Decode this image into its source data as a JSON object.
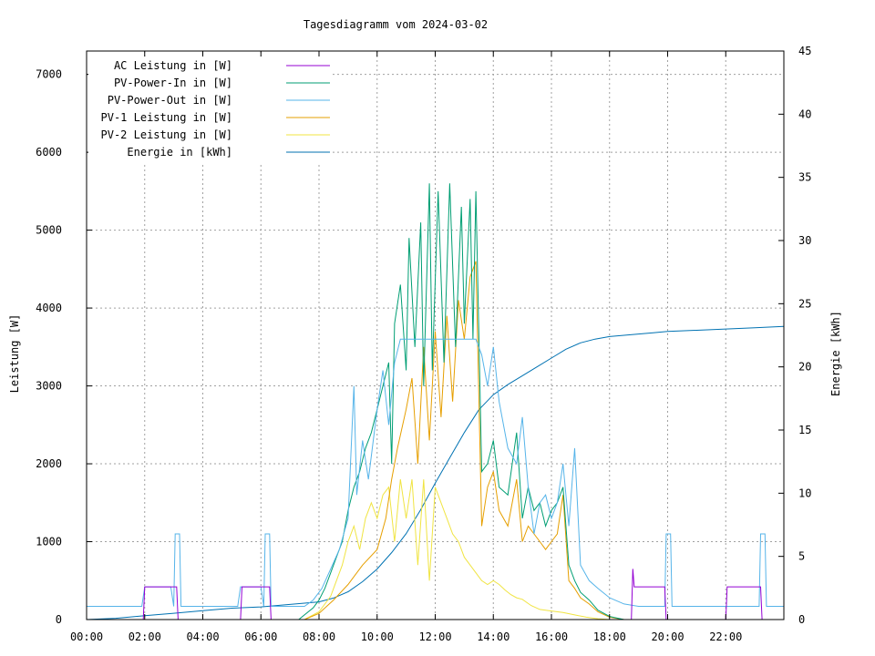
{
  "chart_data": {
    "type": "line",
    "title": "Tagesdiagramm vom 2024-03-02",
    "xlabel": "",
    "ylabel": "Leistung [W]",
    "y2label": "Energie [kWh]",
    "xlim": [
      0,
      24
    ],
    "ylim": [
      0,
      7300
    ],
    "y2lim": [
      0,
      45
    ],
    "grid": true,
    "legend_position": "top-left",
    "x_ticks": [
      "00:00",
      "02:00",
      "04:00",
      "06:00",
      "08:00",
      "10:00",
      "12:00",
      "14:00",
      "16:00",
      "18:00",
      "20:00",
      "22:00"
    ],
    "x_tick_values": [
      0,
      2,
      4,
      6,
      8,
      10,
      12,
      14,
      16,
      18,
      20,
      22
    ],
    "y_ticks": [
      0,
      1000,
      2000,
      3000,
      4000,
      5000,
      6000,
      7000
    ],
    "y2_ticks": [
      0,
      5,
      10,
      15,
      20,
      25,
      30,
      35,
      40,
      45
    ],
    "colors": {
      "ac": "#9400d3",
      "pv_in": "#009e73",
      "pv_out": "#56b4e9",
      "pv1": "#e69f00",
      "pv2": "#f0e442",
      "energie": "#0072b2"
    },
    "series": [
      {
        "name": "AC Leistung in [W]",
        "key": "ac",
        "axis": "y",
        "points": [
          [
            0,
            0
          ],
          [
            1.95,
            0
          ],
          [
            2.0,
            420
          ],
          [
            3.1,
            420
          ],
          [
            3.15,
            0
          ],
          [
            5.3,
            0
          ],
          [
            5.35,
            420
          ],
          [
            6.3,
            420
          ],
          [
            6.35,
            0
          ],
          [
            18.75,
            0
          ],
          [
            18.8,
            650
          ],
          [
            18.85,
            420
          ],
          [
            19.9,
            420
          ],
          [
            19.95,
            0
          ],
          [
            22.0,
            0
          ],
          [
            22.05,
            420
          ],
          [
            23.2,
            420
          ],
          [
            23.25,
            0
          ],
          [
            24,
            0
          ]
        ]
      },
      {
        "name": "PV-Power-In in [W]",
        "key": "pv_in",
        "axis": "y",
        "points": [
          [
            0,
            0
          ],
          [
            7.3,
            0
          ],
          [
            7.8,
            150
          ],
          [
            8.0,
            250
          ],
          [
            8.2,
            400
          ],
          [
            8.4,
            600
          ],
          [
            8.6,
            800
          ],
          [
            8.8,
            1000
          ],
          [
            9.0,
            1400
          ],
          [
            9.2,
            1700
          ],
          [
            9.4,
            1900
          ],
          [
            9.6,
            2200
          ],
          [
            9.8,
            2400
          ],
          [
            10.0,
            2700
          ],
          [
            10.2,
            3000
          ],
          [
            10.4,
            3300
          ],
          [
            10.5,
            2000
          ],
          [
            10.6,
            3800
          ],
          [
            10.8,
            4300
          ],
          [
            11.0,
            3200
          ],
          [
            11.1,
            4900
          ],
          [
            11.3,
            3500
          ],
          [
            11.5,
            5100
          ],
          [
            11.6,
            3000
          ],
          [
            11.8,
            5600
          ],
          [
            11.9,
            3200
          ],
          [
            12.1,
            5500
          ],
          [
            12.3,
            3300
          ],
          [
            12.5,
            5600
          ],
          [
            12.7,
            3500
          ],
          [
            12.9,
            5300
          ],
          [
            13.0,
            3800
          ],
          [
            13.2,
            5400
          ],
          [
            13.3,
            3600
          ],
          [
            13.4,
            5500
          ],
          [
            13.6,
            1900
          ],
          [
            13.8,
            2000
          ],
          [
            14.0,
            2300
          ],
          [
            14.2,
            1700
          ],
          [
            14.5,
            1600
          ],
          [
            14.8,
            2400
          ],
          [
            15.0,
            1300
          ],
          [
            15.2,
            1700
          ],
          [
            15.4,
            1400
          ],
          [
            15.6,
            1500
          ],
          [
            15.8,
            1200
          ],
          [
            16.0,
            1400
          ],
          [
            16.2,
            1500
          ],
          [
            16.4,
            1700
          ],
          [
            16.6,
            700
          ],
          [
            16.8,
            500
          ],
          [
            17.0,
            350
          ],
          [
            17.3,
            250
          ],
          [
            17.6,
            120
          ],
          [
            18.0,
            40
          ],
          [
            18.5,
            0
          ],
          [
            24,
            0
          ]
        ]
      },
      {
        "name": "PV-Power-Out in [W]",
        "key": "pv_out",
        "axis": "y",
        "points": [
          [
            0,
            170
          ],
          [
            1.9,
            170
          ],
          [
            2.0,
            420
          ],
          [
            2.9,
            420
          ],
          [
            3.0,
            170
          ],
          [
            3.05,
            1100
          ],
          [
            3.2,
            1100
          ],
          [
            3.25,
            170
          ],
          [
            5.2,
            170
          ],
          [
            5.3,
            420
          ],
          [
            6.0,
            420
          ],
          [
            6.1,
            170
          ],
          [
            6.15,
            1100
          ],
          [
            6.3,
            1100
          ],
          [
            6.35,
            170
          ],
          [
            7.5,
            170
          ],
          [
            7.8,
            250
          ],
          [
            8.1,
            400
          ],
          [
            8.4,
            650
          ],
          [
            8.7,
            900
          ],
          [
            9.0,
            1300
          ],
          [
            9.2,
            3000
          ],
          [
            9.3,
            1600
          ],
          [
            9.5,
            2300
          ],
          [
            9.7,
            1800
          ],
          [
            10.0,
            2700
          ],
          [
            10.2,
            3200
          ],
          [
            10.4,
            2500
          ],
          [
            10.6,
            3300
          ],
          [
            10.8,
            3600
          ],
          [
            11.0,
            3600
          ],
          [
            12.0,
            3600
          ],
          [
            13.0,
            3600
          ],
          [
            13.4,
            3600
          ],
          [
            13.6,
            3400
          ],
          [
            13.8,
            3000
          ],
          [
            14.0,
            3500
          ],
          [
            14.2,
            2800
          ],
          [
            14.5,
            2200
          ],
          [
            14.8,
            2000
          ],
          [
            15.0,
            2600
          ],
          [
            15.2,
            1700
          ],
          [
            15.4,
            1100
          ],
          [
            15.6,
            1500
          ],
          [
            15.8,
            1600
          ],
          [
            16.0,
            1300
          ],
          [
            16.2,
            1500
          ],
          [
            16.4,
            2000
          ],
          [
            16.6,
            1200
          ],
          [
            16.8,
            2200
          ],
          [
            17.0,
            700
          ],
          [
            17.3,
            500
          ],
          [
            17.6,
            400
          ],
          [
            18.0,
            280
          ],
          [
            18.5,
            200
          ],
          [
            19.0,
            170
          ],
          [
            19.9,
            170
          ],
          [
            19.95,
            1100
          ],
          [
            20.1,
            1100
          ],
          [
            20.15,
            170
          ],
          [
            23.15,
            170
          ],
          [
            23.2,
            1100
          ],
          [
            23.35,
            1100
          ],
          [
            23.4,
            170
          ],
          [
            24,
            170
          ]
        ]
      },
      {
        "name": "PV-1 Leistung in [W]",
        "key": "pv1",
        "axis": "y",
        "points": [
          [
            0,
            0
          ],
          [
            7.5,
            0
          ],
          [
            8.0,
            80
          ],
          [
            8.5,
            250
          ],
          [
            9.0,
            450
          ],
          [
            9.5,
            700
          ],
          [
            10.0,
            900
          ],
          [
            10.3,
            1300
          ],
          [
            10.5,
            1800
          ],
          [
            10.7,
            2200
          ],
          [
            11.0,
            2700
          ],
          [
            11.2,
            3100
          ],
          [
            11.4,
            2000
          ],
          [
            11.6,
            3500
          ],
          [
            11.8,
            2300
          ],
          [
            12.0,
            3700
          ],
          [
            12.2,
            2600
          ],
          [
            12.4,
            3900
          ],
          [
            12.6,
            2800
          ],
          [
            12.8,
            4100
          ],
          [
            13.0,
            3600
          ],
          [
            13.2,
            4400
          ],
          [
            13.4,
            4600
          ],
          [
            13.6,
            1200
          ],
          [
            13.8,
            1700
          ],
          [
            14.0,
            1900
          ],
          [
            14.2,
            1400
          ],
          [
            14.5,
            1200
          ],
          [
            14.8,
            1800
          ],
          [
            15.0,
            1000
          ],
          [
            15.2,
            1200
          ],
          [
            15.4,
            1100
          ],
          [
            15.6,
            1000
          ],
          [
            15.8,
            900
          ],
          [
            16.0,
            1000
          ],
          [
            16.2,
            1100
          ],
          [
            16.4,
            1600
          ],
          [
            16.6,
            500
          ],
          [
            16.8,
            400
          ],
          [
            17.0,
            280
          ],
          [
            17.3,
            200
          ],
          [
            17.6,
            100
          ],
          [
            18.0,
            30
          ],
          [
            18.5,
            0
          ],
          [
            24,
            0
          ]
        ]
      },
      {
        "name": "PV-2 Leistung in [W]",
        "key": "pv2",
        "axis": "y",
        "points": [
          [
            0,
            0
          ],
          [
            7.5,
            0
          ],
          [
            8.0,
            100
          ],
          [
            8.4,
            300
          ],
          [
            8.8,
            700
          ],
          [
            9.0,
            1000
          ],
          [
            9.2,
            1200
          ],
          [
            9.4,
            900
          ],
          [
            9.6,
            1300
          ],
          [
            9.8,
            1500
          ],
          [
            10.0,
            1300
          ],
          [
            10.2,
            1600
          ],
          [
            10.4,
            1700
          ],
          [
            10.6,
            1000
          ],
          [
            10.8,
            1800
          ],
          [
            11.0,
            1300
          ],
          [
            11.2,
            1800
          ],
          [
            11.4,
            700
          ],
          [
            11.6,
            1800
          ],
          [
            11.8,
            500
          ],
          [
            12.0,
            1700
          ],
          [
            12.2,
            1500
          ],
          [
            12.4,
            1300
          ],
          [
            12.6,
            1100
          ],
          [
            12.8,
            1000
          ],
          [
            13.0,
            800
          ],
          [
            13.2,
            700
          ],
          [
            13.4,
            600
          ],
          [
            13.6,
            500
          ],
          [
            13.8,
            450
          ],
          [
            14.0,
            500
          ],
          [
            14.2,
            450
          ],
          [
            14.4,
            380
          ],
          [
            14.6,
            320
          ],
          [
            14.8,
            280
          ],
          [
            15.0,
            260
          ],
          [
            15.3,
            180
          ],
          [
            15.6,
            130
          ],
          [
            16.0,
            110
          ],
          [
            16.4,
            90
          ],
          [
            16.8,
            60
          ],
          [
            17.2,
            30
          ],
          [
            17.6,
            10
          ],
          [
            18.0,
            0
          ],
          [
            24,
            0
          ]
        ]
      },
      {
        "name": "Energie in [kWh]",
        "key": "energie",
        "axis": "y2",
        "points": [
          [
            0,
            0
          ],
          [
            1.0,
            0.1
          ],
          [
            2.0,
            0.3
          ],
          [
            3.0,
            0.5
          ],
          [
            4.0,
            0.7
          ],
          [
            5.0,
            0.9
          ],
          [
            6.0,
            1.0
          ],
          [
            7.0,
            1.2
          ],
          [
            7.5,
            1.3
          ],
          [
            8.0,
            1.4
          ],
          [
            8.5,
            1.7
          ],
          [
            9.0,
            2.2
          ],
          [
            9.5,
            3.0
          ],
          [
            10.0,
            4.0
          ],
          [
            10.5,
            5.3
          ],
          [
            11.0,
            6.8
          ],
          [
            11.5,
            8.7
          ],
          [
            12.0,
            10.8
          ],
          [
            12.5,
            12.8
          ],
          [
            13.0,
            14.8
          ],
          [
            13.5,
            16.6
          ],
          [
            14.0,
            17.8
          ],
          [
            14.5,
            18.6
          ],
          [
            15.0,
            19.3
          ],
          [
            15.5,
            20.0
          ],
          [
            16.0,
            20.7
          ],
          [
            16.5,
            21.4
          ],
          [
            17.0,
            21.9
          ],
          [
            17.5,
            22.2
          ],
          [
            18.0,
            22.4
          ],
          [
            18.5,
            22.5
          ],
          [
            19.0,
            22.6
          ],
          [
            19.5,
            22.7
          ],
          [
            20.0,
            22.8
          ],
          [
            21.0,
            22.9
          ],
          [
            22.0,
            23.0
          ],
          [
            23.0,
            23.1
          ],
          [
            24.0,
            23.2
          ]
        ]
      }
    ]
  }
}
